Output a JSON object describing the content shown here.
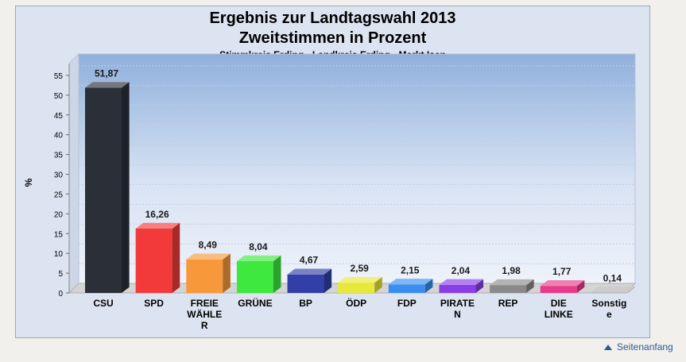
{
  "chart_data": {
    "type": "bar",
    "title": "Ergebnis zur Landtagswahl 2013",
    "title2": "Zweitstimmen in Prozent",
    "subtitle": "Stimmkreis Erding - Landkreis Erding - Markt Isen",
    "ylabel": "%",
    "xlabel": "",
    "ylim": [
      0,
      58
    ],
    "yticks": [
      0,
      5,
      10,
      15,
      20,
      25,
      30,
      35,
      40,
      45,
      50,
      55
    ],
    "grid": true,
    "categories": [
      "CSU",
      "SPD",
      "FREIE WÄHLER",
      "GRÜNE",
      "BP",
      "ÖDP",
      "FDP",
      "PIRATEN",
      "REP",
      "DIE LINKE",
      "Sonstige"
    ],
    "category_lines": [
      [
        "CSU"
      ],
      [
        "SPD"
      ],
      [
        "FREIE",
        "WÄHLE",
        "R"
      ],
      [
        "GRÜNE"
      ],
      [
        "BP"
      ],
      [
        "ÖDP"
      ],
      [
        "FDP"
      ],
      [
        "PIRATE",
        "N"
      ],
      [
        "REP"
      ],
      [
        "DIE",
        "LINKE"
      ],
      [
        "Sonstig",
        "e"
      ]
    ],
    "values": [
      51.87,
      16.26,
      8.49,
      8.04,
      4.67,
      2.59,
      2.15,
      2.04,
      1.98,
      1.77,
      0.14
    ],
    "value_labels": [
      "51,87",
      "16,26",
      "8,49",
      "8,04",
      "4,67",
      "2,59",
      "2,15",
      "2,04",
      "1,98",
      "1,77",
      "0,14"
    ],
    "colors": [
      "#2b2f37",
      "#f23a3a",
      "#f7993a",
      "#3ee83e",
      "#323fa8",
      "#e8e83a",
      "#3a8ef0",
      "#8a3ee8",
      "#8a8a8a",
      "#e83a8a",
      "#b0b0b0"
    ]
  },
  "footer": {
    "top_link": "Seitenanfang"
  }
}
